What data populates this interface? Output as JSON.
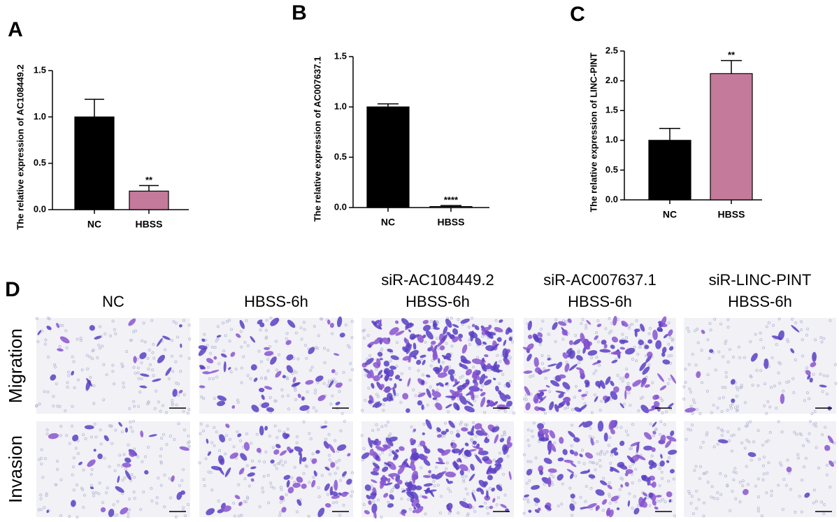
{
  "chart_data": [
    {
      "type": "bar",
      "panel": "A",
      "ylabel": "The relative expression  of  AC108449.2",
      "categories": [
        "NC",
        "HBSS"
      ],
      "values": [
        1.0,
        0.2
      ],
      "errors": [
        0.19,
        0.06
      ],
      "colors": [
        "#000000",
        "#c47a9b"
      ],
      "ylim": [
        0,
        1.5
      ],
      "yticks": [
        {
          "value": 0,
          "label": "0.0"
        },
        {
          "value": 0.5,
          "label": "0.5"
        },
        {
          "value": 1,
          "label": "1.0"
        },
        {
          "value": 1.5,
          "label": "1.5"
        }
      ],
      "annotations": [
        {
          "x": "HBSS",
          "text": "**"
        }
      ]
    },
    {
      "type": "bar",
      "panel": "B",
      "ylabel": "The relative expression  of  AC007637.1",
      "categories": [
        "NC",
        "HBSS"
      ],
      "values": [
        1.0,
        0.01
      ],
      "errors": [
        0.03,
        0.01
      ],
      "colors": [
        "#000000",
        "#c47a9b"
      ],
      "ylim": [
        0,
        1.5
      ],
      "yticks": [
        {
          "value": 0,
          "label": "0.0"
        },
        {
          "value": 0.5,
          "label": "0.5"
        },
        {
          "value": 1,
          "label": "1.0"
        },
        {
          "value": 1.5,
          "label": "1.5"
        }
      ],
      "annotations": [
        {
          "x": "HBSS",
          "text": "****"
        }
      ]
    },
    {
      "type": "bar",
      "panel": "C",
      "ylabel": "The relative expression  of  LINC-PINT",
      "categories": [
        "NC",
        "HBSS"
      ],
      "values": [
        1.0,
        2.12
      ],
      "errors": [
        0.2,
        0.22
      ],
      "colors": [
        "#000000",
        "#c47a9b"
      ],
      "ylim": [
        0,
        2.5
      ],
      "yticks": [
        {
          "value": 0,
          "label": "0.0"
        },
        {
          "value": 0.5,
          "label": "0.5"
        },
        {
          "value": 1,
          "label": "1.0"
        },
        {
          "value": 1.5,
          "label": "1.5"
        },
        {
          "value": 2,
          "label": "2.0"
        },
        {
          "value": 2.5,
          "label": "2.5"
        }
      ],
      "annotations": [
        {
          "x": "HBSS",
          "text": "**"
        }
      ]
    }
  ],
  "panel_d": {
    "panel": "D",
    "columns": [
      [
        "NC"
      ],
      [
        "HBSS-6h"
      ],
      [
        "siR-AC108449.2",
        "HBSS-6h"
      ],
      [
        "siR-AC007637.1",
        "HBSS-6h"
      ],
      [
        "siR-LINC-PINT",
        "HBSS-6h"
      ]
    ],
    "rows": [
      "Migration",
      "Invasion"
    ]
  }
}
